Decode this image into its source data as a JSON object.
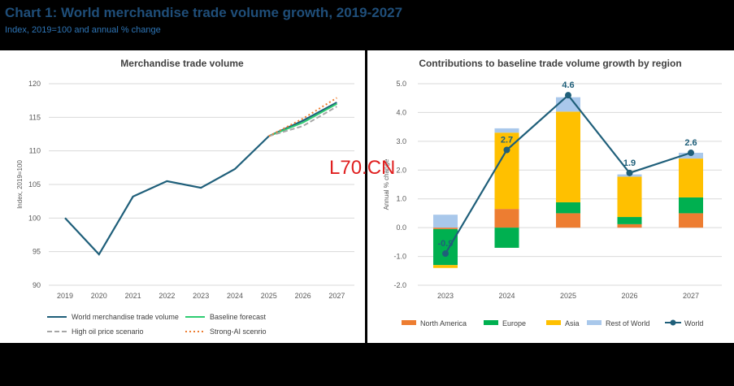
{
  "header": {
    "title": "Chart 1: World merchandise trade volume growth, 2019-2027",
    "subtitle": "Index, 2019=100 and annual % change"
  },
  "watermark": "L70.CN",
  "colors": {
    "title": "#1F4E79",
    "subtitle": "#2E75B6",
    "world_line": "#1F5F7A",
    "baseline": "#2ECC71",
    "high_oil": "#A6A6A6",
    "strong_ai": "#ED7D31",
    "north_america": "#ED7D31",
    "europe": "#00B050",
    "asia": "#FFC000",
    "rest_of_world": "#A9C8EB"
  },
  "chart_data": [
    {
      "type": "line",
      "title": "Merchandise trade volume",
      "ylabel": "Index, 2019=100",
      "xlabel": "",
      "x": [
        "2019",
        "2020",
        "2021",
        "2022",
        "2023",
        "2024",
        "2025",
        "2026",
        "2027"
      ],
      "ylim": [
        90,
        120
      ],
      "yticks": [
        90,
        95,
        100,
        105,
        110,
        115,
        120
      ],
      "grid": true,
      "legend": "bottom",
      "series": [
        {
          "name": "World merchandise trade volume",
          "style": "solid",
          "color": "#1F5F7A",
          "values": [
            100,
            94.6,
            103.2,
            105.5,
            104.5,
            107.3,
            112.2,
            null,
            117.2
          ]
        },
        {
          "name": "Baseline forecast",
          "style": "solid",
          "color": "#2ECC71",
          "values": [
            null,
            null,
            null,
            null,
            null,
            null,
            112.2,
            114.2,
            117.0
          ]
        },
        {
          "name": "High oil price scenario",
          "style": "dashed",
          "color": "#A6A6A6",
          "values": [
            null,
            null,
            null,
            null,
            null,
            null,
            112.2,
            113.7,
            116.6
          ]
        },
        {
          "name": "Strong-AI scenrio",
          "style": "dotted",
          "color": "#ED7D31",
          "values": [
            null,
            null,
            null,
            null,
            null,
            null,
            112.2,
            114.8,
            117.9
          ]
        }
      ],
      "world_extension": {
        "x": [
          "2025",
          "2026",
          "2027"
        ],
        "values": [
          112.2,
          114.5,
          117.2
        ]
      }
    },
    {
      "type": "bar",
      "stacked": true,
      "title": "Contributions to baseline trade volume growth by region",
      "ylabel": "Annual % change",
      "xlabel": "",
      "categories": [
        "2023",
        "2024",
        "2025",
        "2026",
        "2027"
      ],
      "ylim": [
        -2.0,
        5.0
      ],
      "yticks": [
        "-2.0",
        "-1.0",
        "0.0",
        "1.0",
        "2.0",
        "3.0",
        "4.0",
        "5.0"
      ],
      "grid": true,
      "legend": "bottom",
      "series": [
        {
          "name": "North America",
          "color": "#ED7D31",
          "values": [
            -0.05,
            0.65,
            0.5,
            0.12,
            0.5
          ]
        },
        {
          "name": "Europe",
          "color": "#00B050",
          "values": [
            -1.25,
            -0.7,
            0.38,
            0.25,
            0.55
          ]
        },
        {
          "name": "Asia",
          "color": "#FFC000",
          "values": [
            -0.1,
            2.65,
            3.15,
            1.4,
            1.35
          ]
        },
        {
          "name": "Rest of World",
          "color": "#A9C8EB",
          "values": [
            0.45,
            0.15,
            0.5,
            0.08,
            0.2
          ]
        }
      ],
      "line": {
        "name": "World",
        "color": "#1F5F7A",
        "values": [
          -0.9,
          2.7,
          4.6,
          1.9,
          2.6
        ],
        "labels": [
          "-0.9",
          "2.7",
          "4.6",
          "1.9",
          "2.6"
        ]
      }
    }
  ]
}
